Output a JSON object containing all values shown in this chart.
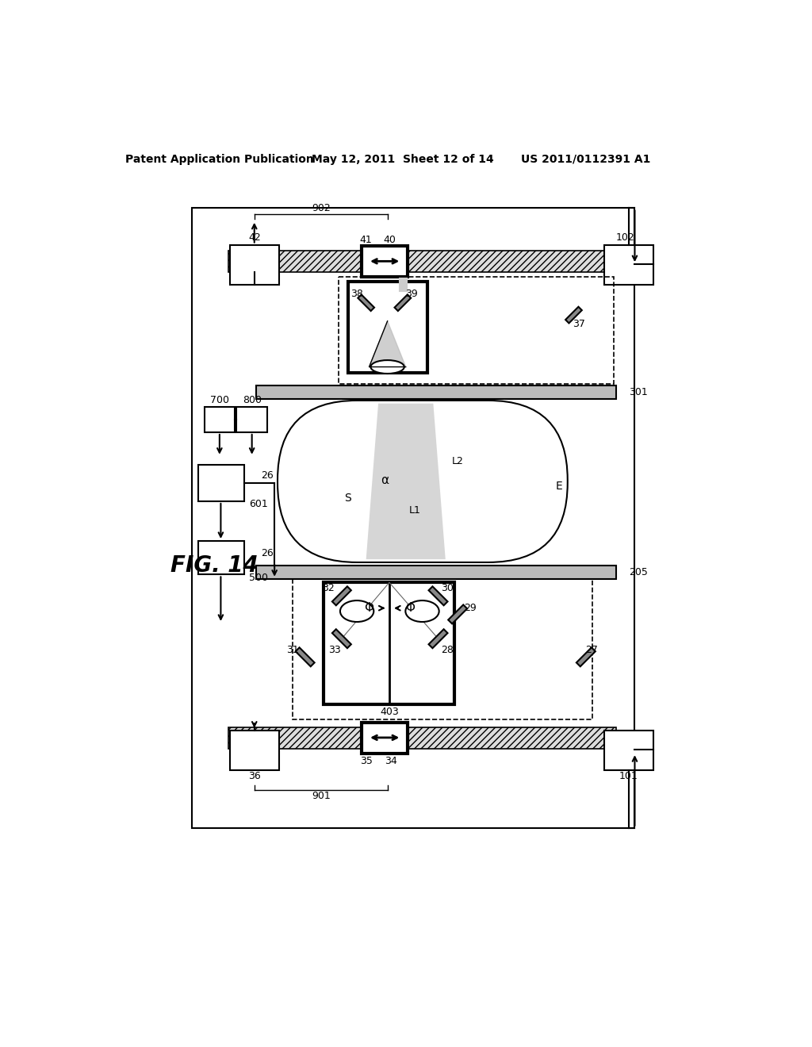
{
  "bg_color": "#ffffff",
  "title_left": "Patent Application Publication",
  "title_mid": "May 12, 2011  Sheet 12 of 14",
  "title_right": "US 2011/0112391 A1"
}
